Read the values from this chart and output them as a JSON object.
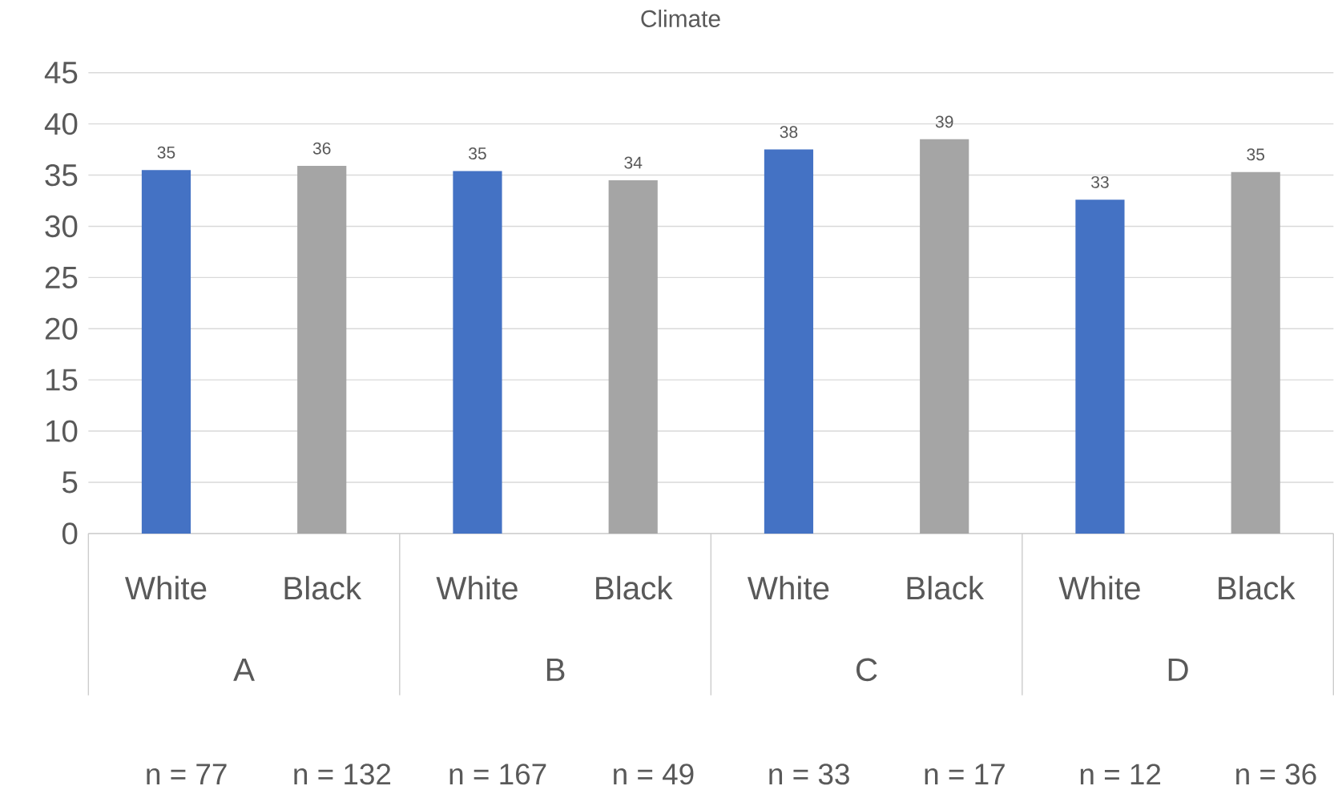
{
  "chart_data": {
    "type": "bar",
    "title": "Climate",
    "categories": [
      "White",
      "Black",
      "White",
      "Black",
      "White",
      "Black",
      "White",
      "Black"
    ],
    "values": [
      35.5,
      35.9,
      35.4,
      34.5,
      37.5,
      38.5,
      32.6,
      35.3
    ],
    "value_labels": [
      "35",
      "36",
      "35",
      "34",
      "38",
      "39",
      "33",
      "35"
    ],
    "colors": [
      "#4472c4",
      "#a5a5a5",
      "#4472c4",
      "#a5a5a5",
      "#4472c4",
      "#a5a5a5",
      "#4472c4",
      "#a5a5a5"
    ],
    "ylim": [
      0,
      45
    ],
    "yticks": [
      0,
      5,
      10,
      15,
      20,
      25,
      30,
      35,
      40,
      45
    ],
    "grid": "y",
    "annotations": [
      "A",
      "B",
      "C",
      "D",
      "n = 77",
      "n = 132",
      "n = 167",
      "n = 49",
      "n = 33",
      "n = 17",
      "n = 12",
      "n = 36"
    ]
  }
}
